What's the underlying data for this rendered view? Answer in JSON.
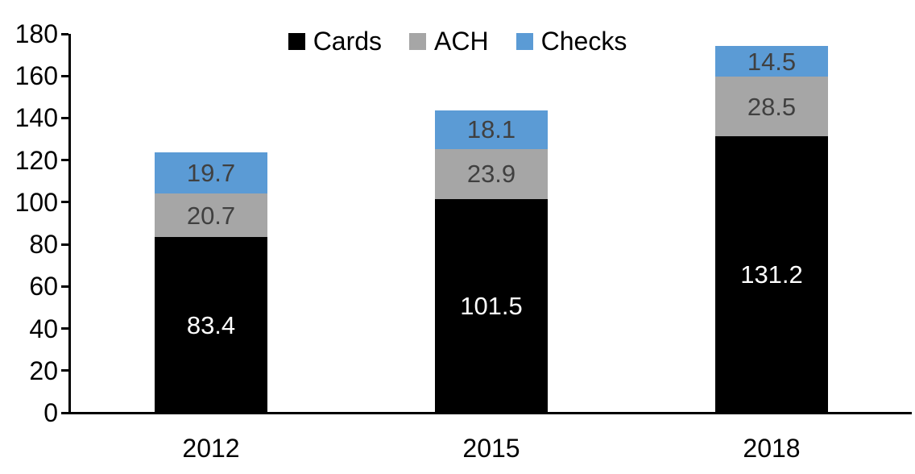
{
  "chart_data": {
    "type": "bar",
    "stacked": true,
    "title": "",
    "categories": [
      "2012",
      "2015",
      "2018"
    ],
    "series": [
      {
        "name": "Cards",
        "color": "#000000",
        "label_color": "#ffffff",
        "values": [
          83.4,
          101.5,
          131.2
        ]
      },
      {
        "name": "ACH",
        "color": "#a6a6a6",
        "label_color": "#404040",
        "values": [
          20.7,
          23.9,
          28.5
        ]
      },
      {
        "name": "Checks",
        "color": "#5b9bd5",
        "label_color": "#404040",
        "values": [
          19.7,
          18.1,
          14.5
        ]
      }
    ],
    "totals": [
      123.8,
      143.5,
      174.2
    ],
    "xlabel": "",
    "ylabel": "",
    "ylim": [
      0,
      180
    ],
    "y_ticks": [
      0,
      20,
      40,
      60,
      80,
      100,
      120,
      140,
      160,
      180
    ],
    "grid": false,
    "legend_position": "top",
    "axis_color": "#000000",
    "background_color": "#ffffff"
  }
}
